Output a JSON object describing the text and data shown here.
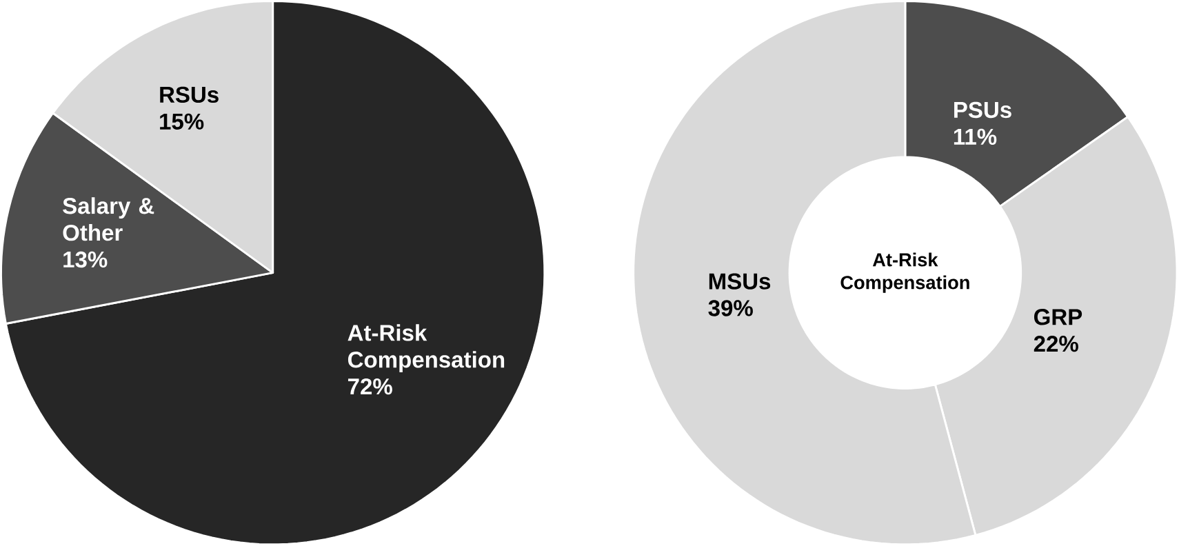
{
  "chart_data": [
    {
      "type": "pie",
      "categories": [
        "At-Risk Compensation",
        "Salary & Other",
        "RSUs"
      ],
      "values": [
        72,
        13,
        15
      ],
      "value_labels": [
        "72%",
        "13%",
        "15%"
      ],
      "colors": [
        "#262626",
        "#4d4d4d",
        "#d9d9d9"
      ]
    },
    {
      "type": "donut",
      "title": "At-Risk Compensation",
      "categories": [
        "PSUs",
        "GRP",
        "MSUs"
      ],
      "values": [
        11,
        22,
        39
      ],
      "value_labels": [
        "11%",
        "22%",
        "39%"
      ],
      "colors": [
        "#4d4d4d",
        "#d9d9d9",
        "#d9d9d9"
      ]
    }
  ]
}
